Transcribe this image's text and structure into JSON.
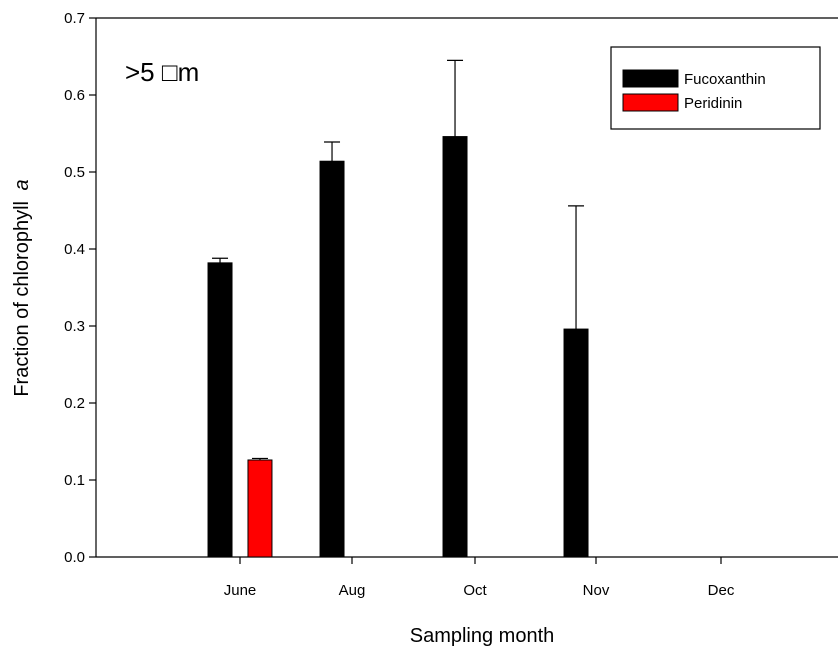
{
  "chart_data": {
    "type": "bar",
    "panel_label": ">5 □m",
    "categories": [
      "June",
      "Aug",
      "Oct",
      "Nov",
      "Dec"
    ],
    "series": [
      {
        "name": "Fucoxanthin",
        "color": "#000000",
        "values": [
          0.382,
          0.514,
          0.546,
          0.296,
          null
        ],
        "error": [
          0.006,
          0.025,
          0.099,
          0.16,
          null
        ]
      },
      {
        "name": "Peridinin",
        "color": "#ff0000",
        "values": [
          0.126,
          null,
          null,
          null,
          null
        ],
        "error": [
          0.002,
          null,
          null,
          null,
          null
        ]
      }
    ],
    "xlabel": "Sampling month",
    "ylabel": "Fraction of chlorophyll",
    "ylabel_italic_suffix": "a",
    "ylim": [
      0,
      0.7
    ],
    "yticks": [
      "0.0",
      "0.1",
      "0.2",
      "0.3",
      "0.4",
      "0.5",
      "0.6",
      "0.7"
    ],
    "legend_position": "top-right",
    "grid": false
  }
}
